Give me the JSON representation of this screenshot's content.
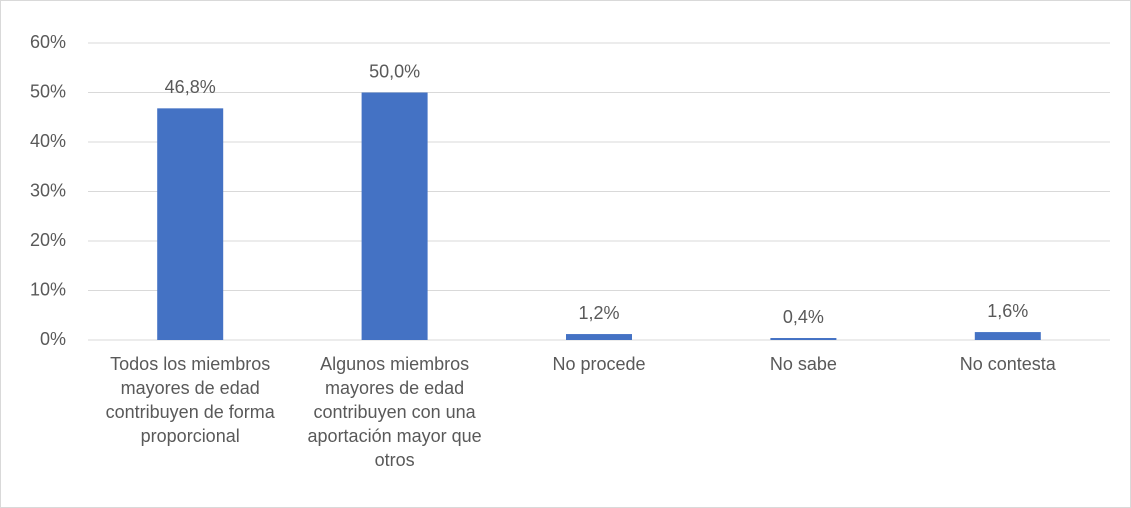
{
  "chart_data": {
    "type": "bar",
    "categories": [
      "Todos los miembros mayores de edad contribuyen de forma proporcional",
      "Algunos miembros mayores de edad contribuyen con una aportación mayor que otros",
      "No procede",
      "No sabe",
      "No contesta"
    ],
    "values": [
      46.8,
      50.0,
      1.2,
      0.4,
      1.6
    ],
    "value_labels": [
      "46,8%",
      "50,0%",
      "1,2%",
      "0,4%",
      "1,6%"
    ],
    "color": "#4472c4",
    "ylim": [
      0,
      60
    ],
    "yticks": [
      {
        "value": 0,
        "label": "0%"
      },
      {
        "value": 10,
        "label": "10%"
      },
      {
        "value": 20,
        "label": "20%"
      },
      {
        "value": 30,
        "label": "30%"
      },
      {
        "value": 40,
        "label": "40%"
      },
      {
        "value": 50,
        "label": "50%"
      },
      {
        "value": 60,
        "label": "60%"
      }
    ],
    "grid": true
  }
}
